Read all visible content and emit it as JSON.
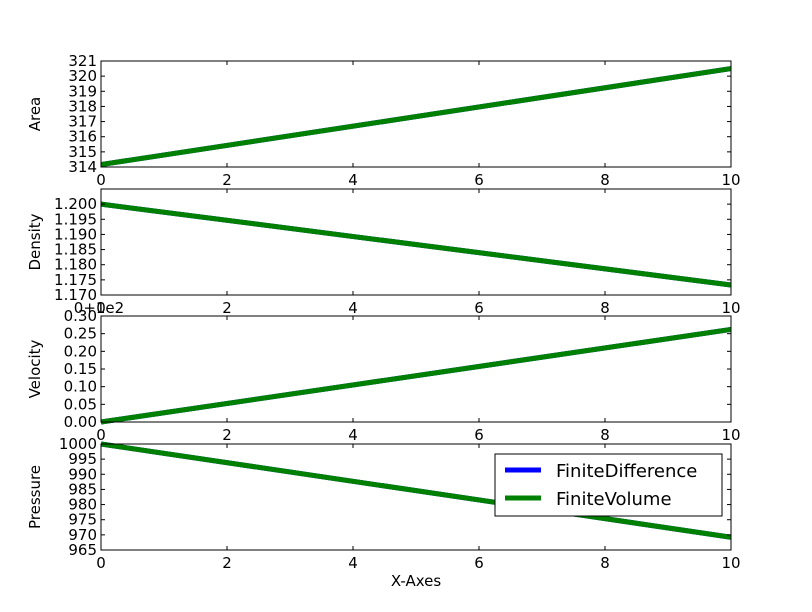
{
  "figure": {
    "xlabel": "X-Axes"
  },
  "legend": {
    "placement": "bottom subplot, upper-right",
    "entries": [
      {
        "label": "FiniteDifference",
        "color": "#0000ff"
      },
      {
        "label": "FiniteVolume",
        "color": "#008000"
      }
    ]
  },
  "chart_data": [
    {
      "type": "line",
      "ylabel": "Area",
      "xlim": [
        0,
        10
      ],
      "ylim": [
        314,
        321
      ],
      "xticks": [
        "0",
        "2",
        "4",
        "6",
        "8",
        "10"
      ],
      "yticks": [
        "314",
        "315",
        "316",
        "317",
        "318",
        "319",
        "320",
        "321"
      ],
      "offset_text": "",
      "series": [
        {
          "name": "FiniteDifference",
          "color": "#0000ff",
          "x": [
            0,
            10
          ],
          "y": [
            314.16,
            320.5
          ]
        },
        {
          "name": "FiniteVolume",
          "color": "#008000",
          "x": [
            0,
            10
          ],
          "y": [
            314.16,
            320.5
          ]
        }
      ]
    },
    {
      "type": "line",
      "ylabel": "Density",
      "xlim": [
        0,
        10
      ],
      "ylim": [
        1.17,
        1.205
      ],
      "xticks": [
        "0",
        "2",
        "4",
        "6",
        "8",
        "10"
      ],
      "yticks": [
        "1.170",
        "1.175",
        "1.180",
        "1.185",
        "1.190",
        "1.195",
        "1.200"
      ],
      "offset_text": "",
      "series": [
        {
          "name": "FiniteDifference",
          "color": "#0000ff",
          "x": [
            0,
            10
          ],
          "y": [
            1.2,
            1.1733
          ]
        },
        {
          "name": "FiniteVolume",
          "color": "#008000",
          "x": [
            0,
            10
          ],
          "y": [
            1.2,
            1.1733
          ]
        }
      ]
    },
    {
      "type": "line",
      "ylabel": "Velocity",
      "xlim": [
        0,
        10
      ],
      "ylim": [
        0,
        0.3
      ],
      "xticks": [
        "0",
        "2",
        "4",
        "6",
        "8",
        "10"
      ],
      "yticks": [
        "0.00",
        "0.05",
        "0.10",
        "0.15",
        "0.20",
        "0.25",
        "0.30"
      ],
      "offset_text": "0+1e2",
      "series": [
        {
          "name": "FiniteDifference",
          "color": "#0000ff",
          "x": [
            0,
            10
          ],
          "y": [
            0,
            0.262
          ]
        },
        {
          "name": "FiniteVolume",
          "color": "#008000",
          "x": [
            0,
            10
          ],
          "y": [
            0,
            0.262
          ]
        }
      ]
    },
    {
      "type": "line",
      "ylabel": "Pressure",
      "xlim": [
        0,
        10
      ],
      "ylim": [
        965,
        1000
      ],
      "xticks": [
        "0",
        "2",
        "4",
        "6",
        "8",
        "10"
      ],
      "yticks": [
        "965",
        "970",
        "975",
        "980",
        "985",
        "990",
        "995",
        "1000"
      ],
      "offset_text": "",
      "series": [
        {
          "name": "FiniteDifference",
          "color": "#0000ff",
          "x": [
            0,
            10
          ],
          "y": [
            1000,
            969.2
          ]
        },
        {
          "name": "FiniteVolume",
          "color": "#008000",
          "x": [
            0,
            10
          ],
          "y": [
            1000,
            969.2
          ]
        }
      ]
    }
  ]
}
